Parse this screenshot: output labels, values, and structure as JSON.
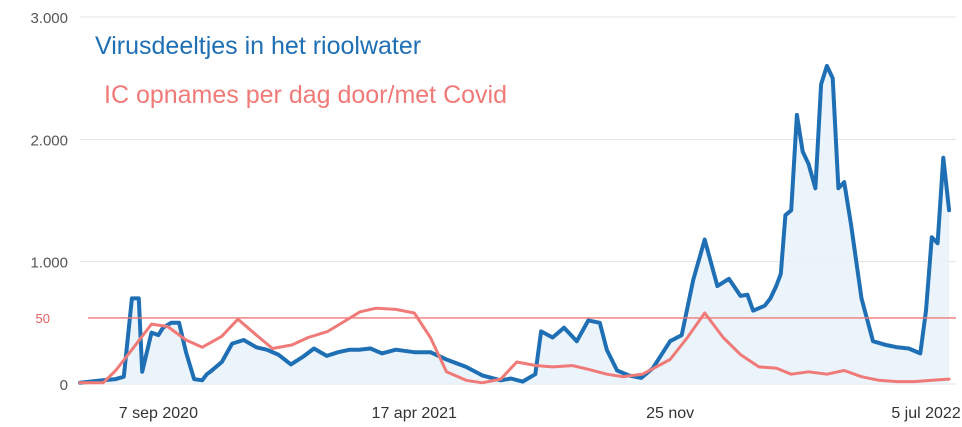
{
  "chart_data": {
    "type": "area",
    "title": "",
    "xlabel": "",
    "ylabel": "",
    "ylim": [
      0,
      3000
    ],
    "y_ticks": [
      "0",
      "1.000",
      "2.000",
      "3.000"
    ],
    "x_ticks": [
      "7 sep 2020",
      "17 apr 2021",
      "25 nov",
      "5 jul 2022"
    ],
    "grid": "horizontal",
    "reference_line": {
      "label": "50",
      "value": 540,
      "color": "#f07a78"
    },
    "series": [
      {
        "name": "Virusdeeltjes in het rioolwater",
        "color": "#1f6fb5",
        "x": [
          "2020-07-01",
          "2020-07-21",
          "2020-08-01",
          "2020-08-08",
          "2020-08-15",
          "2020-08-21",
          "2020-08-24",
          "2020-09-01",
          "2020-09-07",
          "2020-09-11",
          "2020-09-18",
          "2020-09-25",
          "2020-10-01",
          "2020-10-08",
          "2020-10-15",
          "2020-10-19",
          "2020-10-22",
          "2020-11-01",
          "2020-11-10",
          "2020-11-20",
          "2020-12-01",
          "2020-12-10",
          "2020-12-20",
          "2020-12-31",
          "2021-01-10",
          "2021-01-20",
          "2021-01-31",
          "2021-02-10",
          "2021-02-20",
          "2021-02-28",
          "2021-03-10",
          "2021-03-20",
          "2021-04-01",
          "2021-04-17",
          "2021-05-01",
          "2021-05-15",
          "2021-06-01",
          "2021-06-15",
          "2021-07-01",
          "2021-07-10",
          "2021-07-20",
          "2021-07-31",
          "2021-08-05",
          "2021-08-15",
          "2021-08-25",
          "2021-09-05",
          "2021-09-15",
          "2021-09-25",
          "2021-10-01",
          "2021-10-10",
          "2021-10-20",
          "2021-10-31",
          "2021-11-10",
          "2021-11-25",
          "2021-12-05",
          "2021-12-15",
          "2021-12-25",
          "2022-01-05",
          "2022-01-15",
          "2022-01-25",
          "2022-01-31",
          "2022-02-05",
          "2022-02-10",
          "2022-02-15",
          "2022-02-20",
          "2022-02-25",
          "2022-03-01",
          "2022-03-05",
          "2022-03-10",
          "2022-03-15",
          "2022-03-20",
          "2022-03-25",
          "2022-03-31",
          "2022-04-05",
          "2022-04-10",
          "2022-04-15",
          "2022-04-20",
          "2022-04-25",
          "2022-05-01",
          "2022-05-10",
          "2022-05-20",
          "2022-05-31",
          "2022-06-10",
          "2022-06-20",
          "2022-06-30",
          "2022-07-05",
          "2022-07-10",
          "2022-07-15",
          "2022-07-20",
          "2022-07-25"
        ],
        "values": [
          10,
          30,
          40,
          60,
          700,
          700,
          100,
          420,
          400,
          460,
          500,
          500,
          260,
          40,
          30,
          80,
          100,
          180,
          330,
          360,
          300,
          280,
          240,
          160,
          220,
          290,
          230,
          260,
          280,
          280,
          290,
          250,
          280,
          260,
          260,
          200,
          140,
          70,
          30,
          45,
          20,
          80,
          430,
          380,
          460,
          350,
          520,
          500,
          280,
          110,
          70,
          50,
          130,
          350,
          400,
          850,
          1180,
          800,
          860,
          720,
          730,
          600,
          620,
          640,
          700,
          800,
          900,
          1380,
          1420,
          2200,
          1900,
          1800,
          1600,
          2450,
          2600,
          2500,
          1600,
          1650,
          1300,
          700,
          350,
          320,
          300,
          290,
          250,
          600,
          1200,
          1150,
          1850,
          1420
        ]
      },
      {
        "name": "IC opnames per dag door/met Covid",
        "color": "#f07a78",
        "x": [
          "2020-07-01",
          "2020-07-21",
          "2020-08-01",
          "2020-08-15",
          "2020-09-01",
          "2020-09-15",
          "2020-10-01",
          "2020-10-15",
          "2020-11-01",
          "2020-11-15",
          "2020-12-01",
          "2020-12-15",
          "2021-01-01",
          "2021-01-15",
          "2021-02-01",
          "2021-02-15",
          "2021-03-01",
          "2021-03-15",
          "2021-04-01",
          "2021-04-17",
          "2021-05-01",
          "2021-05-15",
          "2021-06-01",
          "2021-06-15",
          "2021-07-01",
          "2021-07-15",
          "2021-08-01",
          "2021-08-15",
          "2021-09-01",
          "2021-09-15",
          "2021-10-01",
          "2021-10-15",
          "2021-11-01",
          "2021-11-25",
          "2021-12-10",
          "2021-12-25",
          "2022-01-10",
          "2022-01-25",
          "2022-02-10",
          "2022-02-25",
          "2022-03-10",
          "2022-03-25",
          "2022-04-10",
          "2022-04-25",
          "2022-05-10",
          "2022-05-25",
          "2022-06-10",
          "2022-06-25",
          "2022-07-10",
          "2022-07-25"
        ],
        "values": [
          10,
          10,
          110,
          280,
          490,
          470,
          360,
          300,
          390,
          530,
          400,
          290,
          320,
          380,
          430,
          510,
          590,
          620,
          610,
          580,
          380,
          100,
          30,
          10,
          40,
          180,
          150,
          140,
          150,
          120,
          80,
          60,
          80,
          200,
          380,
          580,
          380,
          240,
          140,
          130,
          80,
          100,
          80,
          110,
          60,
          30,
          20,
          20,
          30,
          40
        ]
      }
    ]
  }
}
